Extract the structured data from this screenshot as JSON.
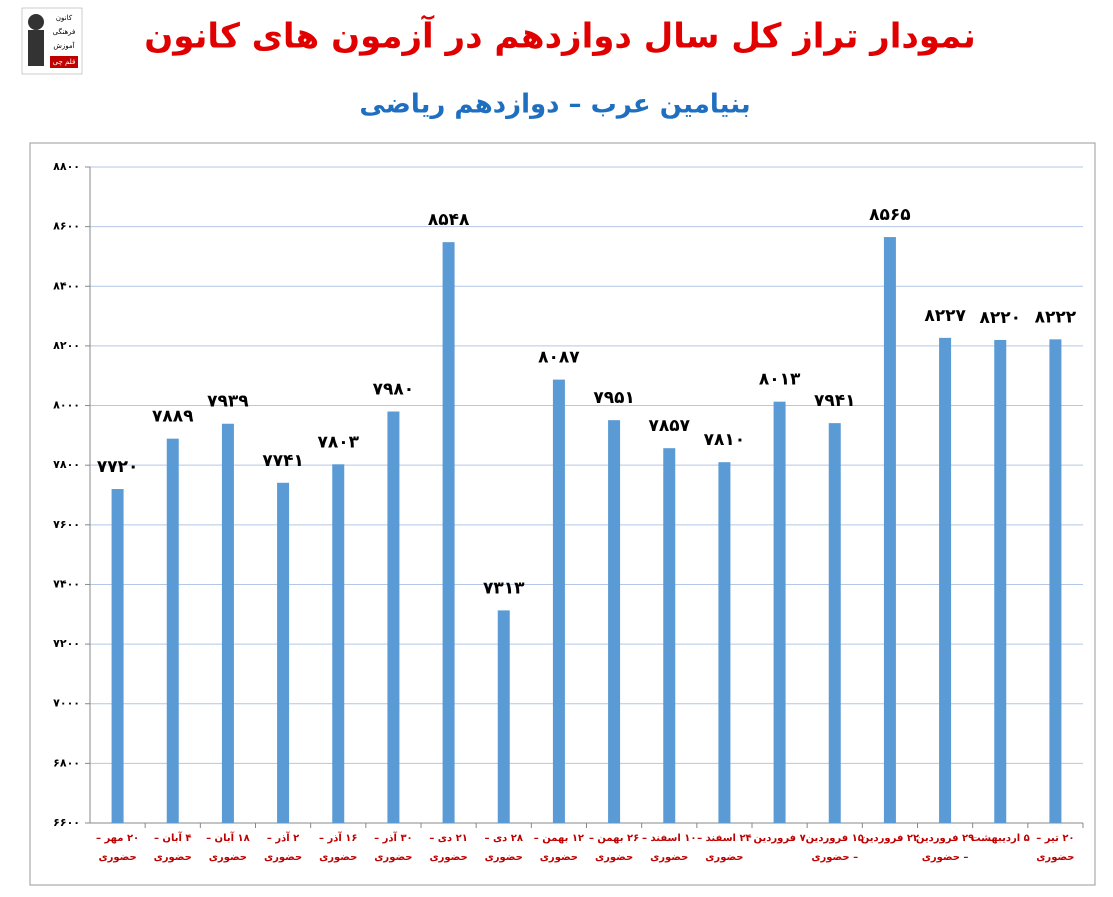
{
  "logo": {
    "lines": [
      "کانون",
      "فرهنگی",
      "آموزش",
      "قلم چی"
    ]
  },
  "chart_data": {
    "type": "bar",
    "title": "نمودار تراز کل سال دوازدهم در آزمون های کانون",
    "subtitle": "بنیامین عرب – دوازدهم ریاضی",
    "categories": [
      "۲۰ مهر – حضوری",
      "۴ آبان – حضوری",
      "۱۸ آبان – حضوری",
      "۲ آذر – حضوری",
      "۱۶ آذر – حضوری",
      "۳۰ آذر – حضوری",
      "۲۱ دی – حضوری",
      "۲۸ دی – حضوری",
      "۱۲ بهمن – حضوری",
      "۲۶ بهمن – حضوری",
      "۱۰ اسفند – حضوری",
      "۲۴ اسفند – حضوری",
      "۷ فروردین",
      "۱۵ فروردین – حضوری",
      "۲۲ فروردین",
      "۲۹ فروردین – حضوری",
      "۵ اردیبهشت",
      "۲۰ تیر – حضوری"
    ],
    "values": [
      7720,
      7889,
      7939,
      7741,
      7803,
      7980,
      8548,
      7313,
      8087,
      7951,
      7857,
      7810,
      8013,
      7941,
      8565,
      8227,
      8220,
      8222
    ],
    "value_labels": [
      "۷۷۲۰",
      "۷۸۸۹",
      "۷۹۳۹",
      "۷۷۴۱",
      "۷۸۰۳",
      "۷۹۸۰",
      "۸۵۴۸",
      "۷۳۱۳",
      "۸۰۸۷",
      "۷۹۵۱",
      "۷۸۵۷",
      "۷۸۱۰",
      "۸۰۱۳",
      "۷۹۴۱",
      "۸۵۶۵",
      "۸۲۲۷",
      "۸۲۲۰",
      "۸۲۲۲"
    ],
    "color": "#5b9bd5",
    "ylim": [
      6600,
      8800
    ],
    "yticks": [
      {
        "value": 6600,
        "label": "۶۶۰۰"
      },
      {
        "value": 6800,
        "label": "۶۸۰۰"
      },
      {
        "value": 7000,
        "label": "۷۰۰۰"
      },
      {
        "value": 7200,
        "label": "۷۲۰۰"
      },
      {
        "value": 7400,
        "label": "۷۴۰۰"
      },
      {
        "value": 7600,
        "label": "۷۶۰۰"
      },
      {
        "value": 7800,
        "label": "۷۸۰۰"
      },
      {
        "value": 8000,
        "label": "۸۰۰۰"
      },
      {
        "value": 8200,
        "label": "۸۲۰۰"
      },
      {
        "value": 8400,
        "label": "۸۴۰۰"
      },
      {
        "value": 8600,
        "label": "۸۶۰۰"
      },
      {
        "value": 8800,
        "label": "۸۸۰۰"
      }
    ],
    "grid": true
  }
}
